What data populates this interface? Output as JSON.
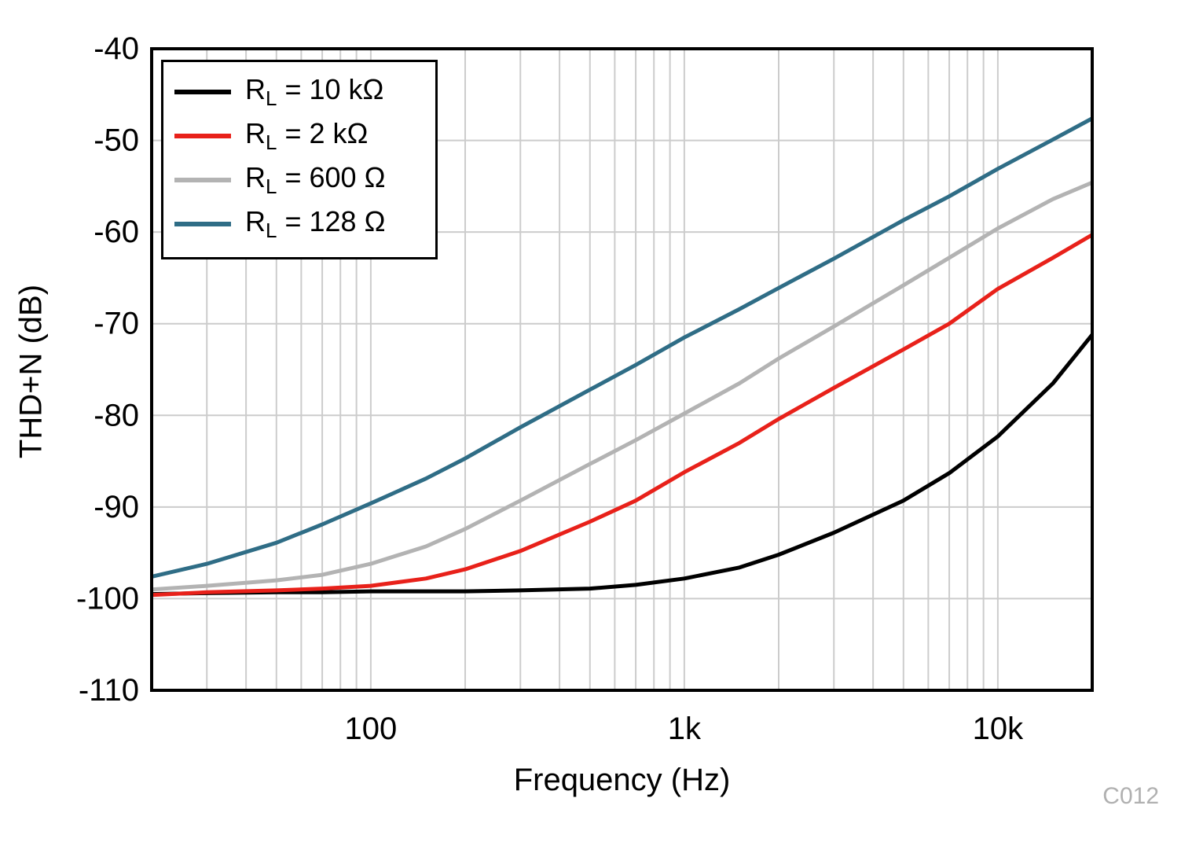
{
  "watermark": "C012",
  "chart_data": {
    "type": "line",
    "title": "",
    "xlabel": "Frequency (Hz)",
    "ylabel": "THD+N (dB)",
    "x_scale": "log",
    "xlim": [
      20,
      20000
    ],
    "ylim": [
      -110,
      -40
    ],
    "grid": "on",
    "grid_color": "#cccccc",
    "legend_position": "top-left",
    "y_ticks": [
      -40,
      -50,
      -60,
      -70,
      -80,
      -90,
      -100,
      -110
    ],
    "x_ticks": [
      {
        "f": 100,
        "label": "100"
      },
      {
        "f": 1000,
        "label": "1k"
      },
      {
        "f": 10000,
        "label": "10k"
      }
    ],
    "x": [
      20,
      30,
      50,
      70,
      100,
      150,
      200,
      300,
      500,
      700,
      1000,
      1500,
      2000,
      3000,
      5000,
      7000,
      10000,
      15000,
      20000
    ],
    "series": [
      {
        "name": "RL = 10 kΩ",
        "label_main": "R",
        "label_sub": "L",
        "label_rest": " = 10 kΩ",
        "color": "#000000",
        "values": [
          -99.5,
          -99.4,
          -99.3,
          -99.3,
          -99.2,
          -99.2,
          -99.2,
          -99.1,
          -98.9,
          -98.5,
          -97.8,
          -96.6,
          -95.2,
          -92.8,
          -89.3,
          -86.3,
          -82.3,
          -76.5,
          -71.2
        ]
      },
      {
        "name": "RL = 2 kΩ",
        "label_main": "R",
        "label_sub": "L",
        "label_rest": " = 2 kΩ",
        "color": "#e8211a",
        "values": [
          -99.6,
          -99.3,
          -99.1,
          -98.9,
          -98.6,
          -97.8,
          -96.8,
          -94.8,
          -91.6,
          -89.3,
          -86.2,
          -83.0,
          -80.4,
          -77.0,
          -72.8,
          -70.0,
          -66.2,
          -62.8,
          -60.3
        ]
      },
      {
        "name": "RL = 600 Ω",
        "label_main": "R",
        "label_sub": "L",
        "label_rest": " = 600 Ω",
        "color": "#b3b3b3",
        "values": [
          -99.0,
          -98.6,
          -98.0,
          -97.4,
          -96.2,
          -94.3,
          -92.4,
          -89.3,
          -85.3,
          -82.7,
          -79.8,
          -76.5,
          -73.8,
          -70.3,
          -65.8,
          -62.8,
          -59.6,
          -56.4,
          -54.6
        ]
      },
      {
        "name": "RL = 128 Ω",
        "label_main": "R",
        "label_sub": "L",
        "label_rest": " = 128 Ω",
        "color": "#2f6d86",
        "values": [
          -97.6,
          -96.2,
          -93.9,
          -91.9,
          -89.6,
          -86.9,
          -84.7,
          -81.3,
          -77.2,
          -74.5,
          -71.5,
          -68.4,
          -66.1,
          -62.9,
          -58.7,
          -56.1,
          -53.1,
          -49.9,
          -47.6
        ]
      }
    ]
  }
}
